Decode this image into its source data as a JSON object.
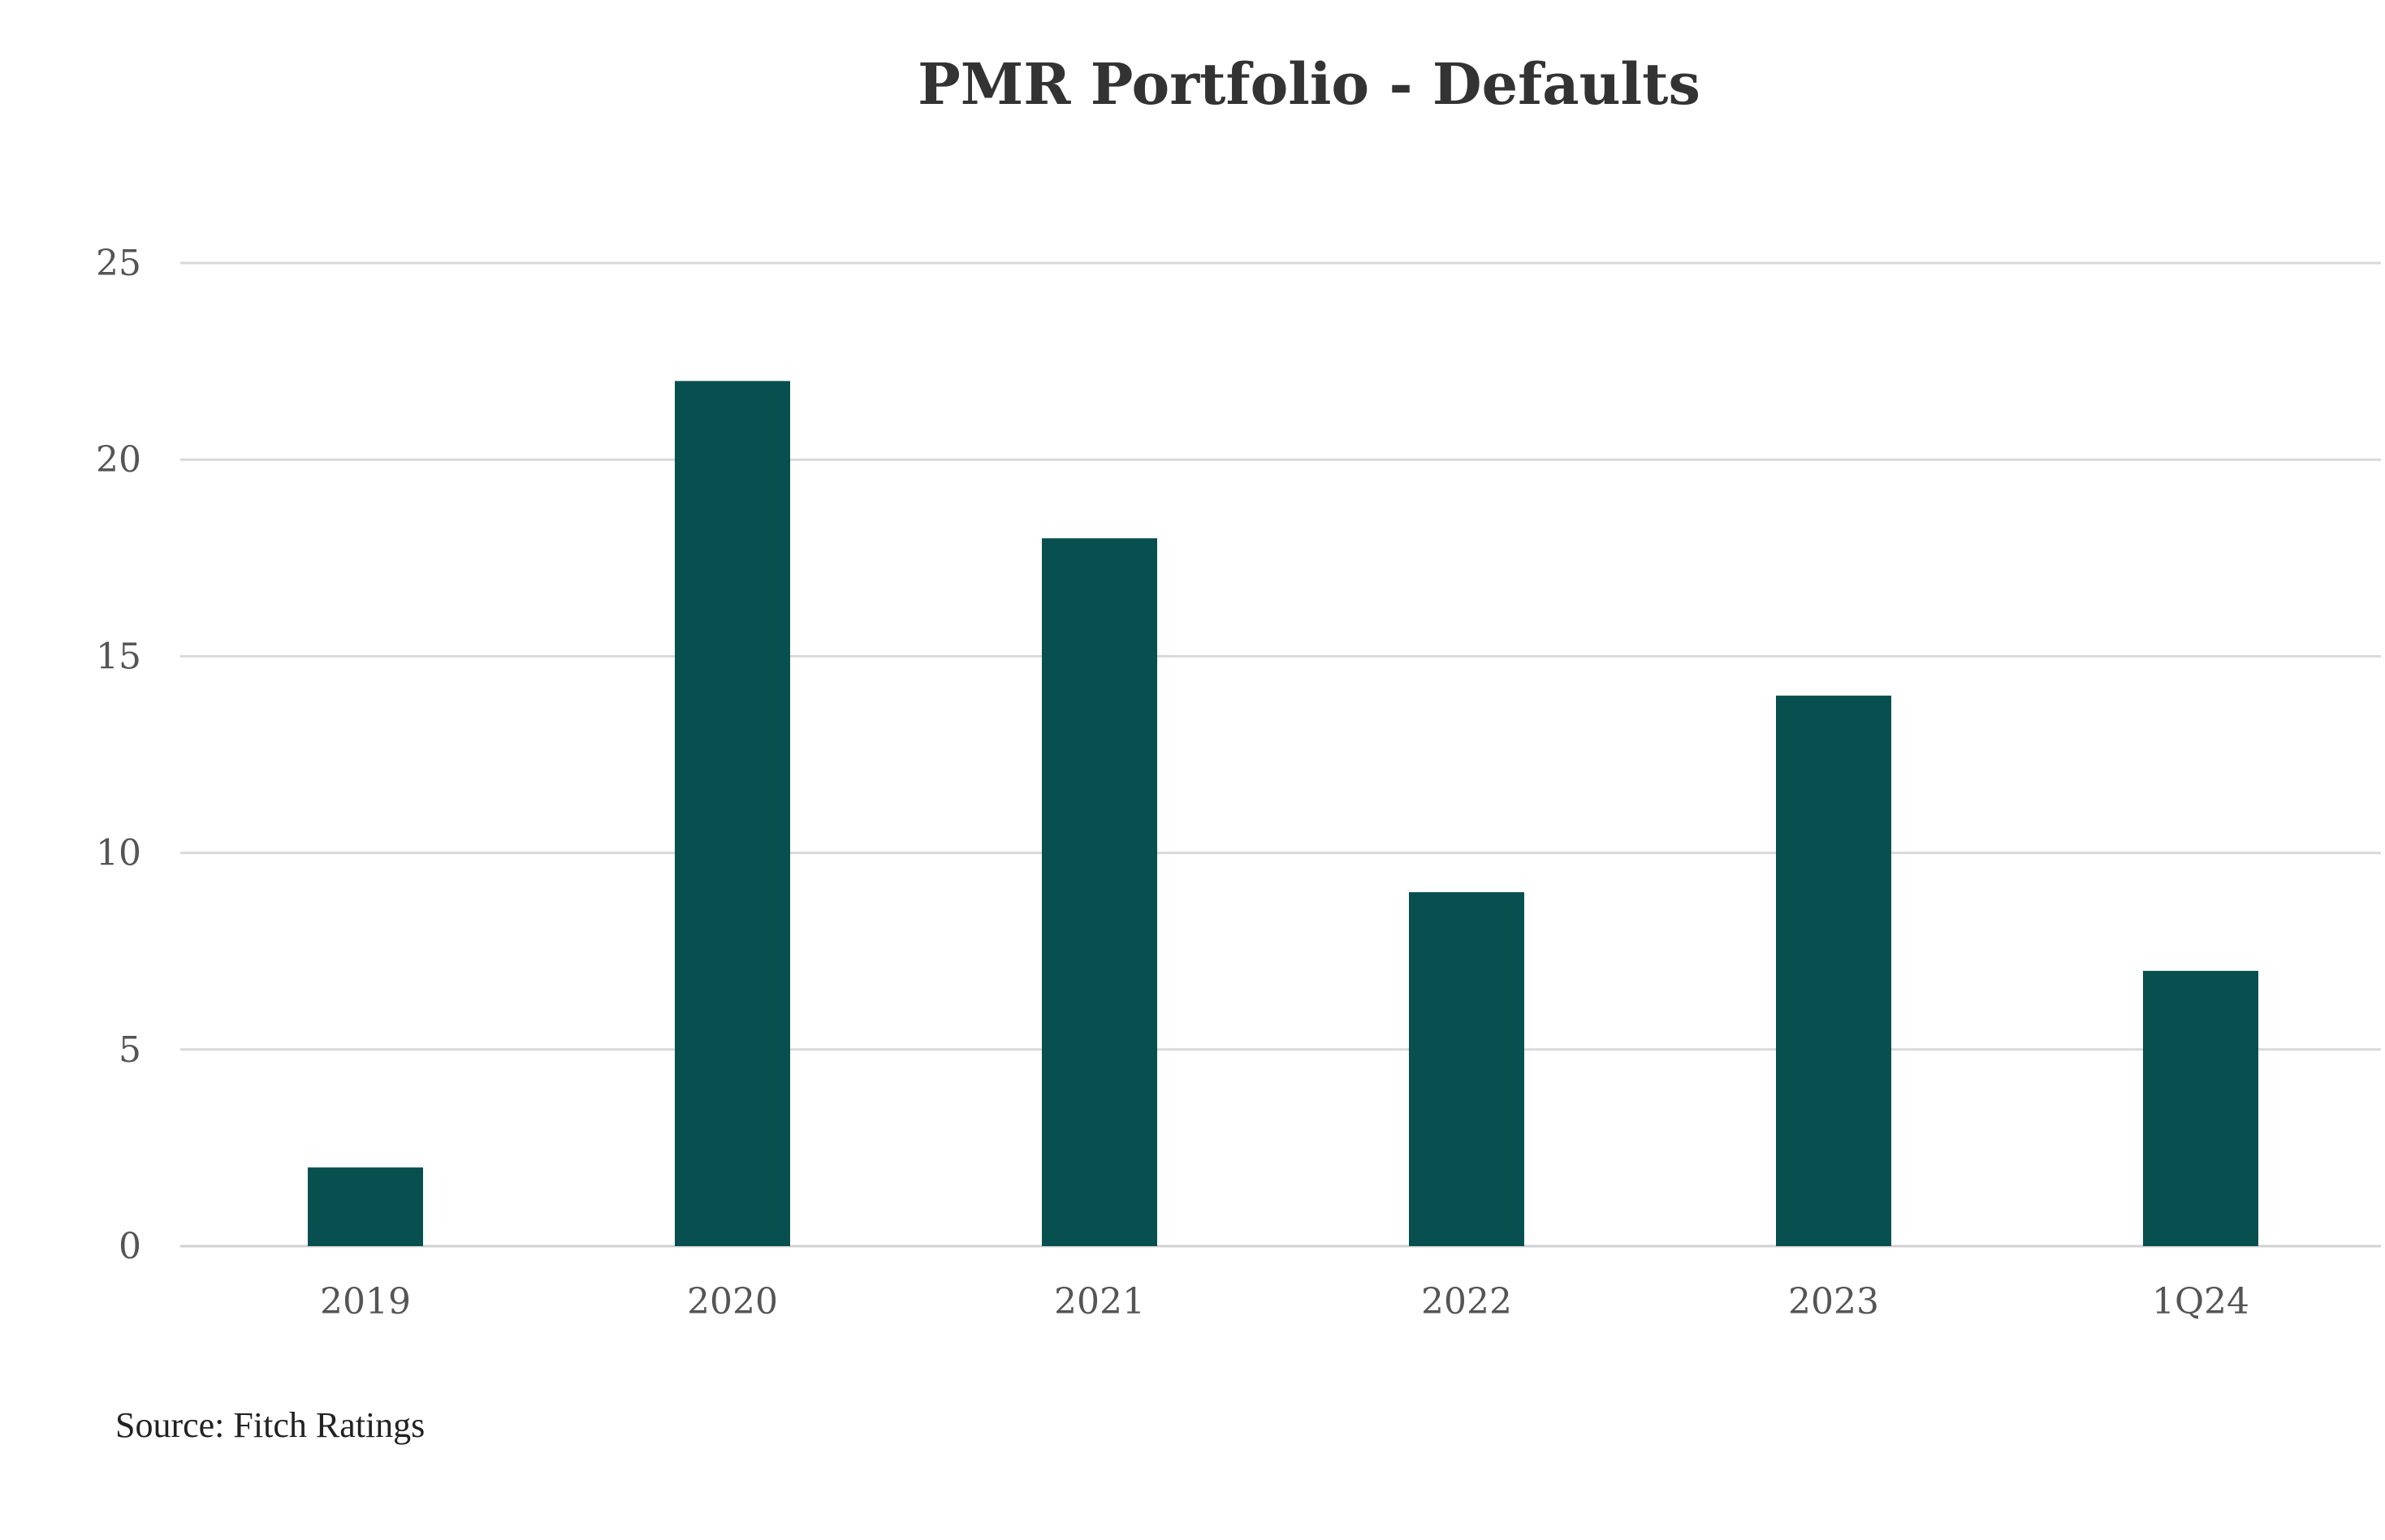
{
  "chart_data": {
    "type": "bar",
    "title": "PMR Portfolio - Defaults",
    "categories": [
      "2019",
      "2020",
      "2021",
      "2022",
      "2023",
      "1Q24"
    ],
    "values": [
      2,
      22,
      18,
      9,
      14,
      7
    ],
    "ylim": [
      0,
      25
    ],
    "yticks": [
      "0",
      "5",
      "10",
      "15",
      "20",
      "25"
    ],
    "xlabel": "",
    "ylabel": "",
    "grid": true,
    "legend": "none",
    "bar_color": "#07504F"
  },
  "footer": {
    "source": "Source: Fitch Ratings"
  }
}
